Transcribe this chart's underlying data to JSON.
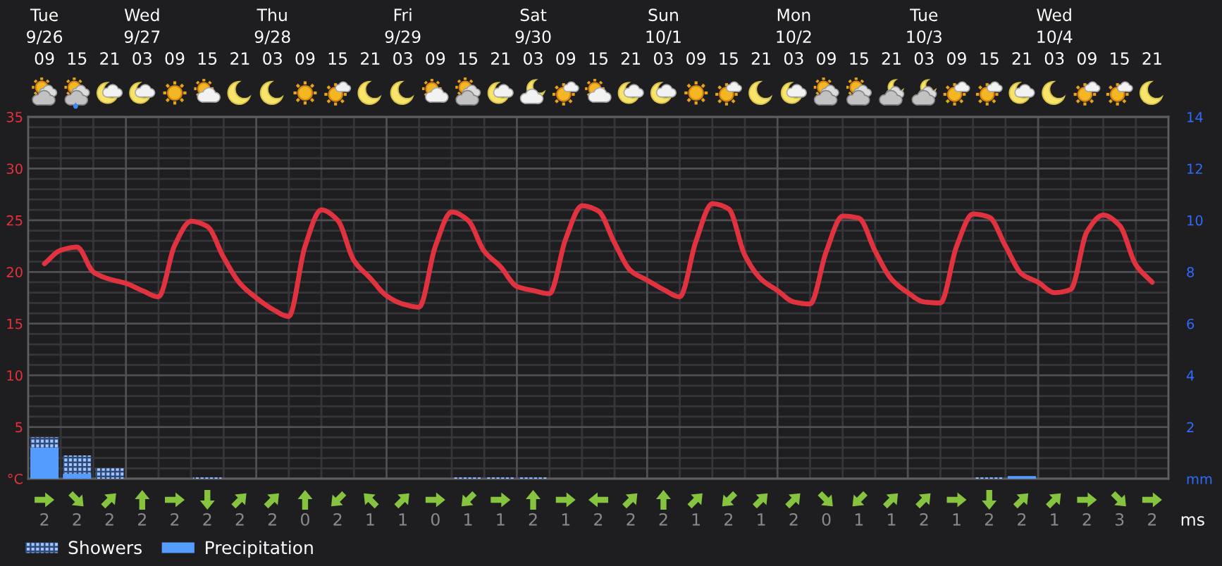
{
  "chart_data": [
    {
      "type": "line",
      "categories": [
        "Tue\n9/26\n09",
        null,
        "15",
        null,
        "21",
        null,
        "Wed\n9/27\n03",
        null,
        "09",
        null,
        "15",
        null,
        "21",
        null,
        "Thu\n9/28\n03",
        null,
        "09",
        null,
        "15",
        null,
        "21",
        null,
        "Fri\n9/29\n03",
        null,
        "09",
        null,
        "15",
        null,
        "21",
        null,
        "Sat\n9/30\n03",
        null,
        "09",
        null,
        "15",
        null,
        "21",
        null,
        "Sun\n10/1\n03",
        null,
        "09",
        null,
        "15",
        null,
        "21",
        null,
        "Mon\n10/2\n03",
        null,
        "09",
        null,
        "15",
        null,
        "21",
        null,
        "Tue\n10/3\n03",
        null,
        "09",
        null,
        "15",
        null,
        "21",
        null,
        "Wed\n10/4\n03",
        null,
        "09",
        null,
        "15",
        null,
        "21"
      ],
      "ylim": [
        0,
        35
      ],
      "yticks": [
        {
          "value": 0,
          "label": "°C"
        },
        5,
        10,
        15,
        20,
        25,
        30,
        35
      ],
      "y2lim": [
        0,
        14
      ],
      "y2ticks": [
        {
          "value": 0,
          "label": "mm"
        },
        2,
        4,
        6,
        8,
        10,
        12,
        14
      ],
      "grid": true,
      "legend": "bottom left",
      "stacked": true,
      "series": [
        {
          "type": "line",
          "color": "#e0333f",
          "values": [
            20.8,
            22.1,
            22.4,
            20.0,
            19.3,
            18.9,
            18.2,
            17.6,
            22.6,
            24.9,
            24.4,
            21.4,
            18.9,
            17.5,
            16.4,
            15.7,
            22.5,
            26.0,
            25.0,
            21.1,
            19.4,
            17.7,
            16.9,
            16.6,
            22.5,
            25.8,
            25.0,
            22.0,
            20.5,
            18.6,
            18.2,
            17.9,
            23.2,
            26.4,
            25.9,
            22.8,
            20.1,
            19.2,
            18.3,
            17.6,
            23.0,
            26.6,
            26.1,
            21.6,
            19.3,
            18.2,
            17.1,
            16.9,
            22.0,
            25.4,
            25.2,
            22.0,
            19.3,
            18.0,
            17.1,
            17.0,
            22.5,
            25.6,
            25.3,
            22.5,
            19.8,
            19.0,
            18.0,
            18.3,
            23.9,
            25.5,
            24.5,
            20.7,
            19.0
          ]
        },
        {
          "name": "Precipitation",
          "type": "bar",
          "axis": "y2",
          "color": "#559cff",
          "values": [
            1.2,
            null,
            0.2,
            null,
            null,
            null,
            null,
            null,
            null,
            null,
            null,
            null,
            null,
            null,
            null,
            null,
            null,
            null,
            null,
            null,
            null,
            null,
            null,
            null,
            null,
            null,
            null,
            null,
            null,
            null,
            null,
            null,
            null,
            null,
            null,
            null,
            null,
            null,
            null,
            null,
            null,
            null,
            null,
            null,
            null,
            null,
            null,
            null,
            null,
            null,
            null,
            null,
            null,
            null,
            null,
            null,
            null,
            null,
            null,
            null,
            0.1,
            null,
            null,
            null,
            null,
            null,
            null,
            null,
            null
          ]
        },
        {
          "name": "Showers",
          "type": "bar",
          "axis": "y2",
          "color": "#a3c5ff",
          "values": [
            0.4,
            null,
            0.7,
            null,
            0.4,
            null,
            null,
            null,
            null,
            null,
            0.05,
            null,
            null,
            null,
            null,
            null,
            null,
            null,
            null,
            null,
            null,
            null,
            null,
            null,
            null,
            null,
            0.05,
            null,
            0.05,
            null,
            0.05,
            null,
            null,
            null,
            null,
            null,
            null,
            null,
            null,
            null,
            null,
            null,
            null,
            null,
            null,
            null,
            null,
            null,
            null,
            null,
            null,
            null,
            null,
            null,
            null,
            null,
            null,
            null,
            0.05,
            null,
            null,
            null,
            null,
            null,
            null,
            null,
            null,
            null,
            null
          ]
        }
      ]
    },
    {
      "type": "other",
      "categories": [
        null,
        null,
        null,
        null,
        null,
        null,
        null,
        null,
        null,
        null,
        null,
        null,
        null,
        null,
        null,
        null,
        null,
        null,
        null,
        null,
        null,
        null,
        null,
        null,
        null,
        null,
        null,
        null,
        null,
        null,
        null,
        null,
        null,
        null,
        null
      ],
      "values": [
        2,
        2,
        2,
        2,
        2,
        2,
        2,
        2,
        0,
        2,
        1,
        1,
        0,
        1,
        1,
        2,
        1,
        2,
        2,
        2,
        1,
        2,
        1,
        2,
        0,
        1,
        1,
        2,
        1,
        2,
        2,
        1,
        2,
        3,
        2
      ],
      "data_labels": true,
      "ylabel": "ms"
    }
  ]
}
